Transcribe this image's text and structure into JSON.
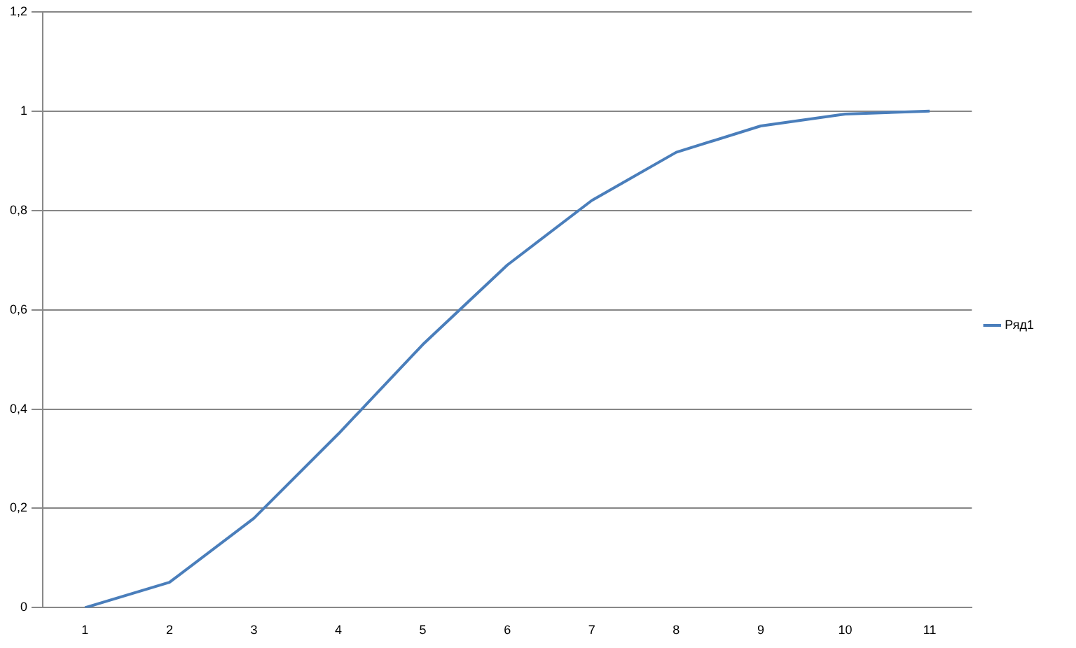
{
  "chart_data": {
    "type": "line",
    "categories": [
      "1",
      "2",
      "3",
      "4",
      "5",
      "6",
      "7",
      "8",
      "9",
      "10",
      "11"
    ],
    "series": [
      {
        "name": "Ряд1",
        "color": "#4a7ebb",
        "values": [
          0,
          0.051,
          0.18,
          0.35,
          0.53,
          0.69,
          0.82,
          0.917,
          0.97,
          0.994,
          1.0
        ]
      }
    ],
    "ylim": [
      0,
      1.2
    ],
    "yticks": [
      0,
      {
        "value": 0.2,
        "label": "0,2"
      },
      {
        "value": 0.4,
        "label": "0,4"
      },
      {
        "value": 0.6,
        "label": "0,6"
      },
      {
        "value": 0.8,
        "label": "0,8"
      },
      1,
      {
        "value": 1.2,
        "label": "1,2"
      }
    ],
    "grid": "y",
    "legend": "right",
    "marker": "none",
    "line_style": "solid"
  }
}
